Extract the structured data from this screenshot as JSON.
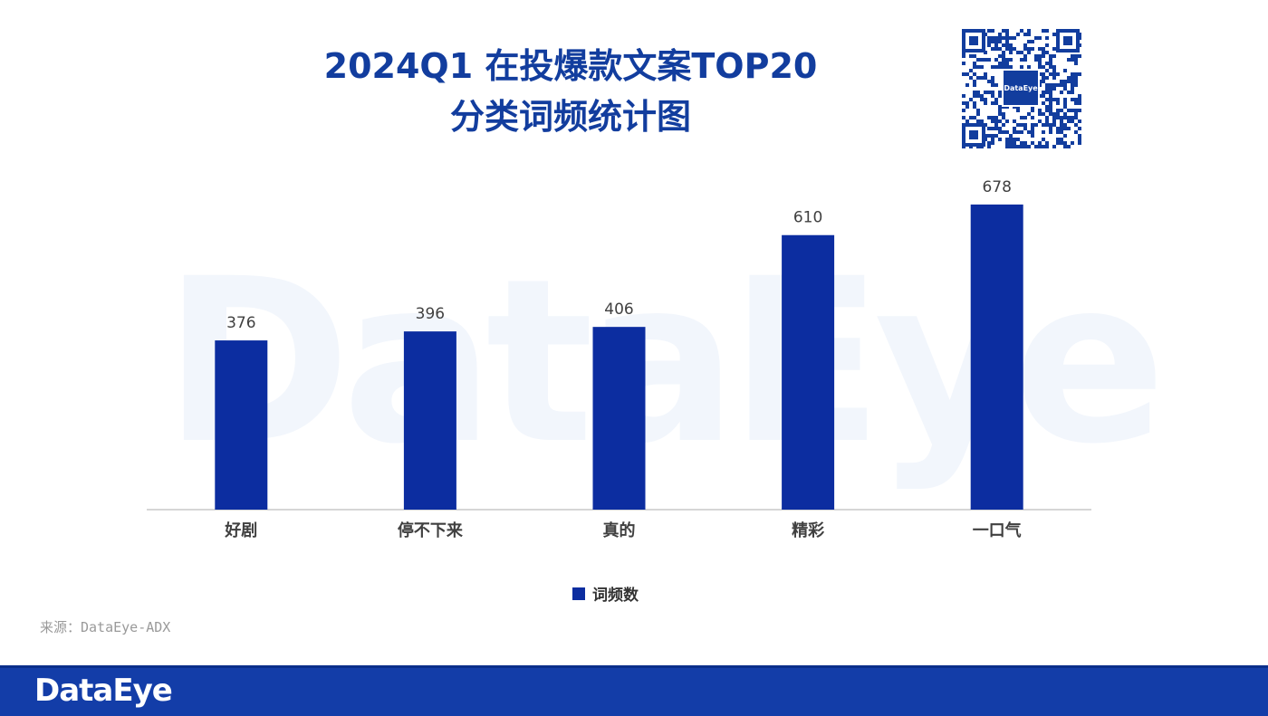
{
  "header": {
    "title_line1": "2024Q1 在投爆款文案TOP20",
    "title_line2": "分类词频统计图"
  },
  "qr": {
    "logo_text": "DataEye"
  },
  "watermark": "DataEye",
  "chart_data": {
    "type": "bar",
    "categories": [
      "好剧",
      "停不下来",
      "真的",
      "精彩",
      "一口气"
    ],
    "series": [
      {
        "name": "词频数",
        "values": [
          376,
          396,
          406,
          610,
          678
        ]
      }
    ],
    "ylim": [
      0,
      700
    ],
    "grid": false,
    "legend": "bottom-center",
    "colors": {
      "bar": "#0c2da0"
    }
  },
  "legend": {
    "label": "词频数"
  },
  "source": "来源：DataEye-ADX",
  "footer": {
    "brand": "DataEye",
    "bar_color": "#133da8"
  }
}
